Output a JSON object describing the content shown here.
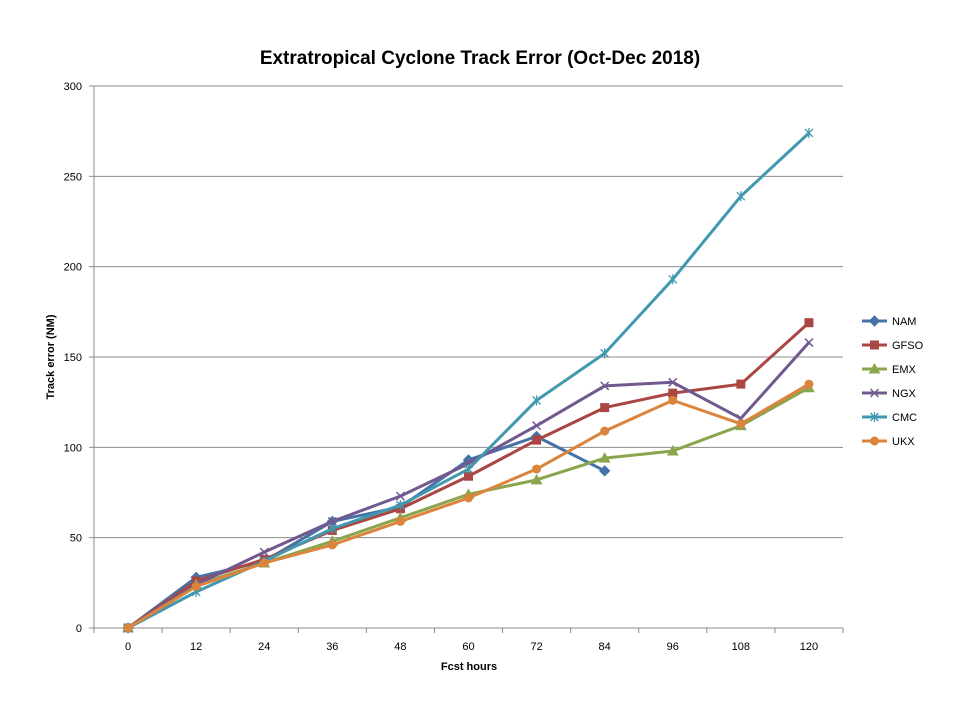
{
  "chart_data": {
    "type": "line",
    "title": "Extratropical Cyclone Track Error (Oct-Dec 2018)",
    "xlabel": "Fcst hours",
    "ylabel": "Track error  (NM)",
    "x": [
      0,
      12,
      24,
      36,
      48,
      60,
      72,
      84,
      96,
      108,
      120
    ],
    "x_tick_labels": [
      "0",
      "12",
      "24",
      "36",
      "48",
      "60",
      "72",
      "84",
      "96",
      "108",
      "120"
    ],
    "ylim": [
      0,
      300
    ],
    "y_ticks": [
      0,
      50,
      100,
      150,
      200,
      250,
      300
    ],
    "y_tick_labels": [
      "0",
      "50",
      "100",
      "150",
      "200",
      "250",
      "300"
    ],
    "grid": "horizontal",
    "legend_position": "right",
    "series": [
      {
        "name": "NAM",
        "color": "#4572A7",
        "marker": "diamond",
        "values": [
          0,
          28,
          37,
          59,
          67,
          93,
          106,
          87,
          null,
          null,
          null
        ]
      },
      {
        "name": "GFSO",
        "color": "#AA4643",
        "marker": "square",
        "values": [
          0,
          26,
          38,
          54,
          66,
          84,
          104,
          122,
          130,
          135,
          169
        ]
      },
      {
        "name": "EMX",
        "color": "#89A54E",
        "marker": "triangle",
        "values": [
          0,
          24,
          36,
          48,
          61,
          74,
          82,
          94,
          98,
          112,
          133
        ]
      },
      {
        "name": "NGX",
        "color": "#71588F",
        "marker": "x",
        "values": [
          0,
          24,
          42,
          59,
          73,
          91,
          112,
          134,
          136,
          116,
          158
        ]
      },
      {
        "name": "CMC",
        "color": "#4198AF",
        "marker": "star",
        "values": [
          0,
          20,
          37,
          55,
          68,
          88,
          126,
          152,
          193,
          239,
          274
        ]
      },
      {
        "name": "UKX",
        "color": "#DB843D",
        "marker": "circle",
        "values": [
          0,
          23,
          36,
          46,
          59,
          72,
          88,
          109,
          126,
          113,
          135
        ]
      }
    ]
  }
}
